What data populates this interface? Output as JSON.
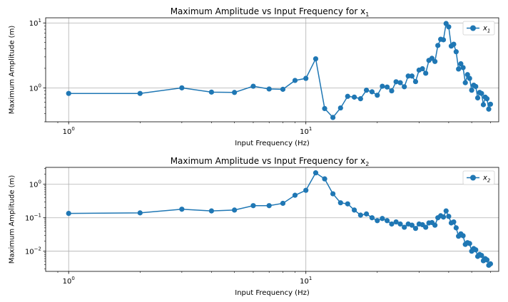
{
  "chart_data": [
    {
      "type": "line",
      "title": "Maximum Amplitude vs Input Frequency for x",
      "title_subscript": "1",
      "xlabel": "Input Frequency (Hz)",
      "ylabel": "Maximum Amplitude (m)",
      "xscale": "log",
      "yscale": "log",
      "xlim": [
        0.8,
        65
      ],
      "ylim": [
        0.3,
        12
      ],
      "grid": true,
      "legend_position": "top-right",
      "x_ticks": [
        {
          "base": "10",
          "exp": "0",
          "value": 1
        },
        {
          "base": "10",
          "exp": "1",
          "value": 10
        }
      ],
      "y_ticks": [
        {
          "base": "10",
          "exp": "0",
          "value": 1
        },
        {
          "base": "10",
          "exp": "1",
          "value": 10
        }
      ],
      "series": [
        {
          "name": "x",
          "name_subscript": "1",
          "color": "#1f77b4",
          "x": [
            1,
            2,
            3,
            4,
            5,
            6,
            7,
            8,
            9,
            10,
            11,
            12,
            13,
            14,
            15,
            16,
            17,
            18,
            19,
            20,
            21,
            22,
            23,
            24,
            25,
            26,
            27,
            28,
            29,
            30,
            31,
            32,
            33,
            34,
            35,
            36,
            37,
            38,
            39,
            40,
            41,
            42,
            43,
            44,
            45,
            46,
            47,
            48,
            49,
            50,
            51,
            52,
            53,
            54,
            55,
            56,
            57,
            58,
            59,
            60
          ],
          "y": [
            0.82,
            0.82,
            1.0,
            0.86,
            0.85,
            1.06,
            0.96,
            0.95,
            1.3,
            1.4,
            2.8,
            0.48,
            0.35,
            0.49,
            0.74,
            0.72,
            0.68,
            0.92,
            0.87,
            0.77,
            1.06,
            1.03,
            0.9,
            1.24,
            1.2,
            1.04,
            1.52,
            1.52,
            1.25,
            1.88,
            1.97,
            1.68,
            2.65,
            2.85,
            2.55,
            4.5,
            5.6,
            5.5,
            9.8,
            8.7,
            4.4,
            4.7,
            3.6,
            1.95,
            2.35,
            2.05,
            1.2,
            1.6,
            1.4,
            0.92,
            1.1,
            1.05,
            0.7,
            0.85,
            0.82,
            0.55,
            0.72,
            0.68,
            0.47,
            0.56
          ]
        }
      ]
    },
    {
      "type": "line",
      "title": "Maximum Amplitude vs Input Frequency for x",
      "title_subscript": "2",
      "xlabel": "Input Frequency (Hz)",
      "ylabel": "Maximum Amplitude (m)",
      "xscale": "log",
      "yscale": "log",
      "xlim": [
        0.8,
        65
      ],
      "ylim": [
        0.0025,
        3.2
      ],
      "grid": true,
      "legend_position": "top-right",
      "x_ticks": [
        {
          "base": "10",
          "exp": "0",
          "value": 1
        },
        {
          "base": "10",
          "exp": "1",
          "value": 10
        }
      ],
      "y_ticks": [
        {
          "base": "10",
          "exp": "−2",
          "value": 0.01
        },
        {
          "base": "10",
          "exp": "−1",
          "value": 0.1
        },
        {
          "base": "10",
          "exp": "0",
          "value": 1
        }
      ],
      "series": [
        {
          "name": "x",
          "name_subscript": "2",
          "color": "#1f77b4",
          "x": [
            1,
            2,
            3,
            4,
            5,
            6,
            7,
            8,
            9,
            10,
            11,
            12,
            13,
            14,
            15,
            16,
            17,
            18,
            19,
            20,
            21,
            22,
            23,
            24,
            25,
            26,
            27,
            28,
            29,
            30,
            31,
            32,
            33,
            34,
            35,
            36,
            37,
            38,
            39,
            40,
            41,
            42,
            43,
            44,
            45,
            46,
            47,
            48,
            49,
            50,
            51,
            52,
            53,
            54,
            55,
            56,
            57,
            58,
            59,
            60
          ],
          "y": [
            0.135,
            0.14,
            0.18,
            0.16,
            0.17,
            0.23,
            0.23,
            0.27,
            0.47,
            0.66,
            2.2,
            1.45,
            0.52,
            0.28,
            0.26,
            0.17,
            0.12,
            0.13,
            0.1,
            0.082,
            0.095,
            0.082,
            0.065,
            0.075,
            0.065,
            0.052,
            0.065,
            0.06,
            0.048,
            0.065,
            0.062,
            0.052,
            0.07,
            0.072,
            0.06,
            0.1,
            0.115,
            0.105,
            0.16,
            0.11,
            0.07,
            0.075,
            0.05,
            0.028,
            0.033,
            0.029,
            0.016,
            0.018,
            0.017,
            0.01,
            0.012,
            0.011,
            0.007,
            0.008,
            0.0075,
            0.0052,
            0.006,
            0.0055,
            0.0038,
            0.0042
          ]
        }
      ]
    }
  ]
}
